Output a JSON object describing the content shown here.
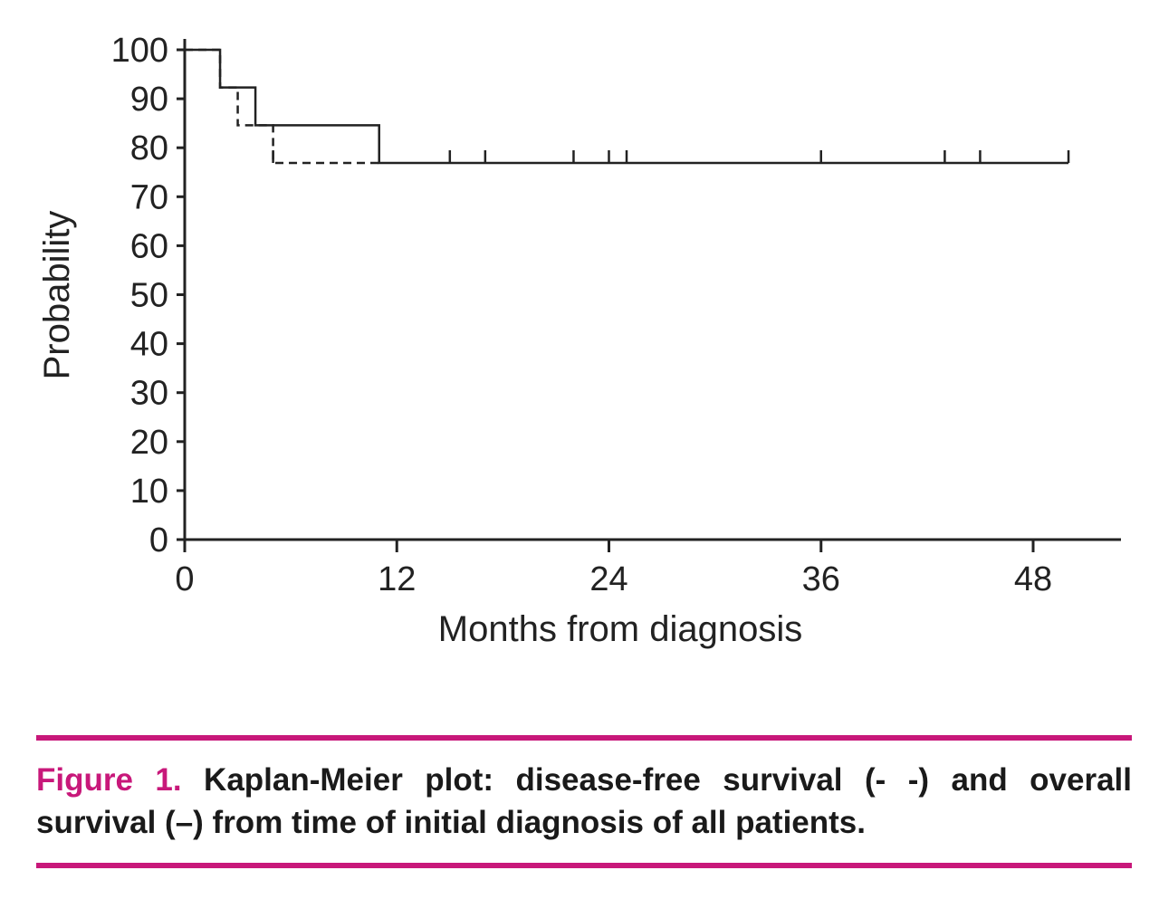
{
  "chart_data": {
    "type": "line",
    "xlabel": "Months from diagnosis",
    "ylabel": "Probability",
    "xlim": [
      0,
      53
    ],
    "ylim": [
      0,
      100
    ],
    "x_ticks": [
      0,
      12,
      24,
      36,
      48
    ],
    "x_tick_labels": [
      "0",
      "12",
      "24",
      "36",
      "48"
    ],
    "y_ticks": [
      0,
      10,
      20,
      30,
      40,
      50,
      60,
      70,
      80,
      90,
      100
    ],
    "y_tick_labels": [
      "0",
      "10",
      "20",
      "30",
      "40",
      "50",
      "60",
      "70",
      "80",
      "90",
      "100"
    ],
    "grid": false,
    "series": [
      {
        "style": "dashed",
        "color": "#222222",
        "steps": [
          [
            0,
            100
          ],
          [
            2,
            92.3
          ],
          [
            3,
            84.6
          ],
          [
            5,
            76.9
          ],
          [
            11,
            76.9
          ]
        ],
        "censored": [
          5
        ]
      },
      {
        "style": "solid",
        "color": "#222222",
        "steps": [
          [
            0,
            100
          ],
          [
            2,
            92.3
          ],
          [
            4,
            84.6
          ],
          [
            11,
            76.9
          ],
          [
            50,
            76.9
          ]
        ],
        "censored": [
          15,
          17,
          22,
          24,
          25,
          36,
          43,
          45,
          50
        ]
      }
    ]
  },
  "caption": {
    "label": "Figure 1.",
    "text": " Kaplan-Meier plot: disease-free survival (- -) and overall survival (–) from time of initial diagnosis of all patients."
  },
  "colors": {
    "accent": "#c8187a",
    "ink": "#222222"
  }
}
